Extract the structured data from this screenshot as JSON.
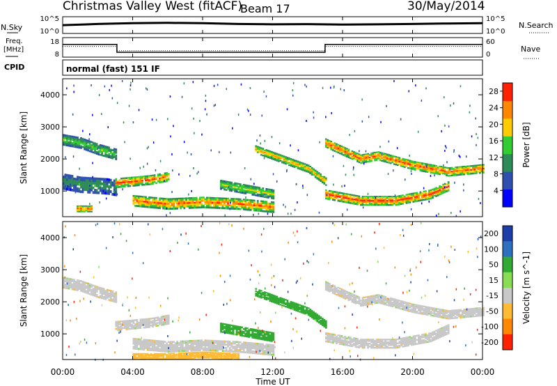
{
  "header": {
    "title": "Christmas Valley West (fitACF)",
    "beam": "Beam 17",
    "date": "30/May/2014"
  },
  "noise_panel": {
    "left_label": "N.Sky",
    "left_ticks": [
      "10^5",
      "10^0"
    ],
    "right_label": "N.Search",
    "right_ticks": [
      "10^5",
      "10^0"
    ]
  },
  "freq_panel": {
    "left_label_1": "Freq.",
    "left_label_2": "[MHz]",
    "left_ticks": [
      "18",
      "8"
    ],
    "right_label": "Nave",
    "right_ticks": [
      "60",
      "0"
    ]
  },
  "cpid_panel": {
    "label": "CPID",
    "text": "normal (fast) 151 IF"
  },
  "x_axis": {
    "label": "Time UT",
    "ticks": [
      "00:00",
      "04:00",
      "08:00",
      "12:00",
      "16:00",
      "20:00",
      "00:00"
    ]
  },
  "chart_data": [
    {
      "type": "line",
      "title": "",
      "ylabel": "N.Sky",
      "y2label": "N.Search",
      "ylog": true,
      "ylim": [
        1,
        100000
      ],
      "xlim": [
        0,
        24
      ],
      "series": [
        {
          "name": "N.Sky",
          "x": [
            0,
            2,
            4,
            6,
            8,
            10,
            12,
            14,
            16,
            18,
            20,
            22,
            24
          ],
          "y": [
            300,
            800,
            1500,
            2000,
            1500,
            800,
            600,
            700,
            500,
            600,
            800,
            1200,
            1500
          ]
        }
      ]
    },
    {
      "type": "line",
      "title": "",
      "ylabel": "Freq. [MHz]",
      "y2label": "Nave",
      "ylim": [
        8,
        18
      ],
      "y2lim": [
        0,
        60
      ],
      "xlim": [
        0,
        24
      ],
      "series": [
        {
          "name": "Freq.",
          "x": [
            0,
            3.1,
            3.1,
            15.0,
            15.0,
            24
          ],
          "y": [
            14.5,
            14.5,
            10.5,
            10.5,
            14.5,
            14.5
          ]
        },
        {
          "name": "Nave",
          "x": [
            0,
            3.1,
            3.1,
            15.0,
            15.0,
            24
          ],
          "y": [
            33,
            33,
            20,
            20,
            33,
            33
          ]
        }
      ]
    },
    {
      "type": "heatmap",
      "title": "",
      "xlabel": "Time UT",
      "ylabel": "Slant Range [km]",
      "xlim": [
        0,
        24
      ],
      "ylim": [
        200,
        4500
      ],
      "yticks": [
        1000,
        2000,
        3000,
        4000
      ],
      "colorbar": {
        "label": "Power [dB]",
        "ticks": [
          4,
          8,
          12,
          16,
          20,
          24,
          28
        ],
        "range": [
          0,
          30
        ],
        "colors": [
          "#0000ff",
          "#3050b0",
          "#2e8b57",
          "#33cc33",
          "#ffcc00",
          "#ff8800",
          "#ff2200"
        ]
      },
      "bands": [
        {
          "t": [
            0.0,
            1.0,
            2.0,
            3.0
          ],
          "range_km": [
            2600,
            2500,
            2300,
            2150
          ],
          "width_km": 350,
          "power_db": 16
        },
        {
          "t": [
            0.0,
            1.0,
            2.5,
            3.0
          ],
          "range_km": [
            1300,
            1200,
            1150,
            1100
          ],
          "width_km": 500,
          "power_db": 12
        },
        {
          "t": [
            0.8,
            1.2,
            1.6
          ],
          "range_km": [
            450,
            450,
            450
          ],
          "width_km": 200,
          "power_db": 26
        },
        {
          "t": [
            3.0,
            4.0,
            5.0,
            6.0
          ],
          "range_km": [
            1250,
            1300,
            1350,
            1450
          ],
          "width_km": 300,
          "power_db": 26
        },
        {
          "t": [
            4.0,
            6.0,
            8.0,
            10.0,
            12.0
          ],
          "range_km": [
            700,
            600,
            650,
            600,
            500
          ],
          "width_km": 350,
          "power_db": 25
        },
        {
          "t": [
            9.0,
            10.5,
            12.0
          ],
          "range_km": [
            1200,
            1050,
            900
          ],
          "width_km": 300,
          "power_db": 18
        },
        {
          "t": [
            11.0,
            12.5,
            14.0,
            15.0
          ],
          "range_km": [
            2300,
            2000,
            1700,
            1300
          ],
          "width_km": 250,
          "power_db": 22
        },
        {
          "t": [
            15.0,
            17.0,
            18.0,
            20.0,
            22.0,
            24.0
          ],
          "range_km": [
            2500,
            2000,
            2100,
            1800,
            1600,
            1700
          ],
          "width_km": 280,
          "power_db": 26
        },
        {
          "t": [
            15.0,
            17.0,
            19.0,
            21.0,
            22.0
          ],
          "range_km": [
            900,
            700,
            700,
            900,
            1150
          ],
          "width_km": 300,
          "power_db": 27
        }
      ]
    },
    {
      "type": "heatmap",
      "title": "",
      "xlabel": "Time UT",
      "ylabel": "Slant Range [km]",
      "xlim": [
        0,
        24
      ],
      "ylim": [
        200,
        4500
      ],
      "yticks": [
        1000,
        2000,
        3000,
        4000
      ],
      "colorbar": {
        "label": "Velocity [m s^-1]",
        "ticks": [
          "200",
          "100",
          "50",
          "15",
          "-15",
          "-50",
          "-100",
          "-200"
        ],
        "colors": [
          "#1c3ea8",
          "#2f6fbf",
          "#33aa33",
          "#88dd55",
          "#c8c8c8",
          "#ffbb33",
          "#ff8800",
          "#ff2200"
        ]
      },
      "bands": [
        {
          "t": [
            0.0,
            1.0,
            2.0,
            3.0
          ],
          "range_km": [
            2600,
            2500,
            2300,
            2150
          ],
          "width_km": 350,
          "velocity": 0
        },
        {
          "t": [
            3.0,
            4.0,
            5.0,
            6.0
          ],
          "range_km": [
            1250,
            1300,
            1350,
            1450
          ],
          "width_km": 300,
          "velocity": 0
        },
        {
          "t": [
            4.0,
            6.0,
            8.0,
            10.0,
            12.0
          ],
          "range_km": [
            700,
            600,
            650,
            600,
            500
          ],
          "width_km": 350,
          "velocity": 0
        },
        {
          "t": [
            4.0,
            6.0,
            8.0,
            10.0
          ],
          "range_km": [
            300,
            300,
            350,
            300
          ],
          "width_km": 200,
          "velocity": -50
        },
        {
          "t": [
            9.0,
            10.5,
            12.0
          ],
          "range_km": [
            1200,
            1050,
            900
          ],
          "width_km": 300,
          "velocity": 50
        },
        {
          "t": [
            11.0,
            12.5,
            14.0,
            15.0
          ],
          "range_km": [
            2300,
            2000,
            1700,
            1300
          ],
          "width_km": 250,
          "velocity": 50
        },
        {
          "t": [
            15.0,
            17.0,
            18.0,
            20.0,
            22.0,
            24.0
          ],
          "range_km": [
            2500,
            2000,
            2100,
            1800,
            1600,
            1700
          ],
          "width_km": 280,
          "velocity": 0
        },
        {
          "t": [
            15.0,
            17.0,
            19.0,
            21.0,
            22.0
          ],
          "range_km": [
            900,
            700,
            700,
            900,
            1150
          ],
          "width_km": 300,
          "velocity": 0
        }
      ]
    }
  ]
}
